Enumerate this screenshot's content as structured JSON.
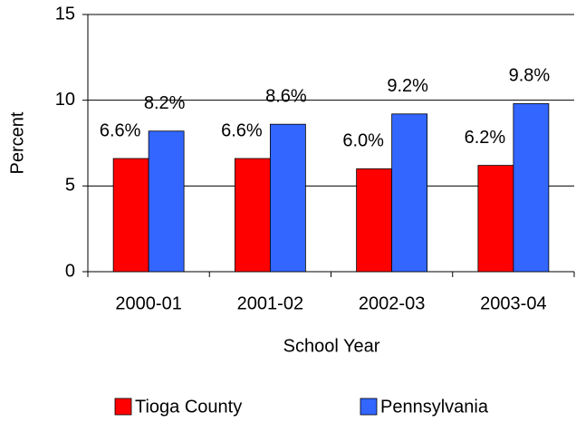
{
  "chart_data": {
    "type": "bar",
    "x_label": "School Year",
    "y_label": "Percent",
    "categories": [
      "2000-01",
      "2001-02",
      "2002-03",
      "2003-04"
    ],
    "series": [
      {
        "name": "Tioga County",
        "color": "#ff0000",
        "values": [
          6.6,
          6.6,
          6.0,
          6.2
        ],
        "value_labels": [
          "6.6%",
          "6.6%",
          "6.0%",
          "6.2%"
        ]
      },
      {
        "name": "Pennsylvania",
        "color": "#3366ff",
        "values": [
          8.2,
          8.6,
          9.2,
          9.8
        ],
        "value_labels": [
          "8.2%",
          "8.6%",
          "9.2%",
          "9.8%"
        ]
      }
    ],
    "ylim": [
      0,
      15
    ],
    "yticks": [
      0,
      5,
      10,
      15
    ],
    "grid": true,
    "legend": "bottom"
  }
}
